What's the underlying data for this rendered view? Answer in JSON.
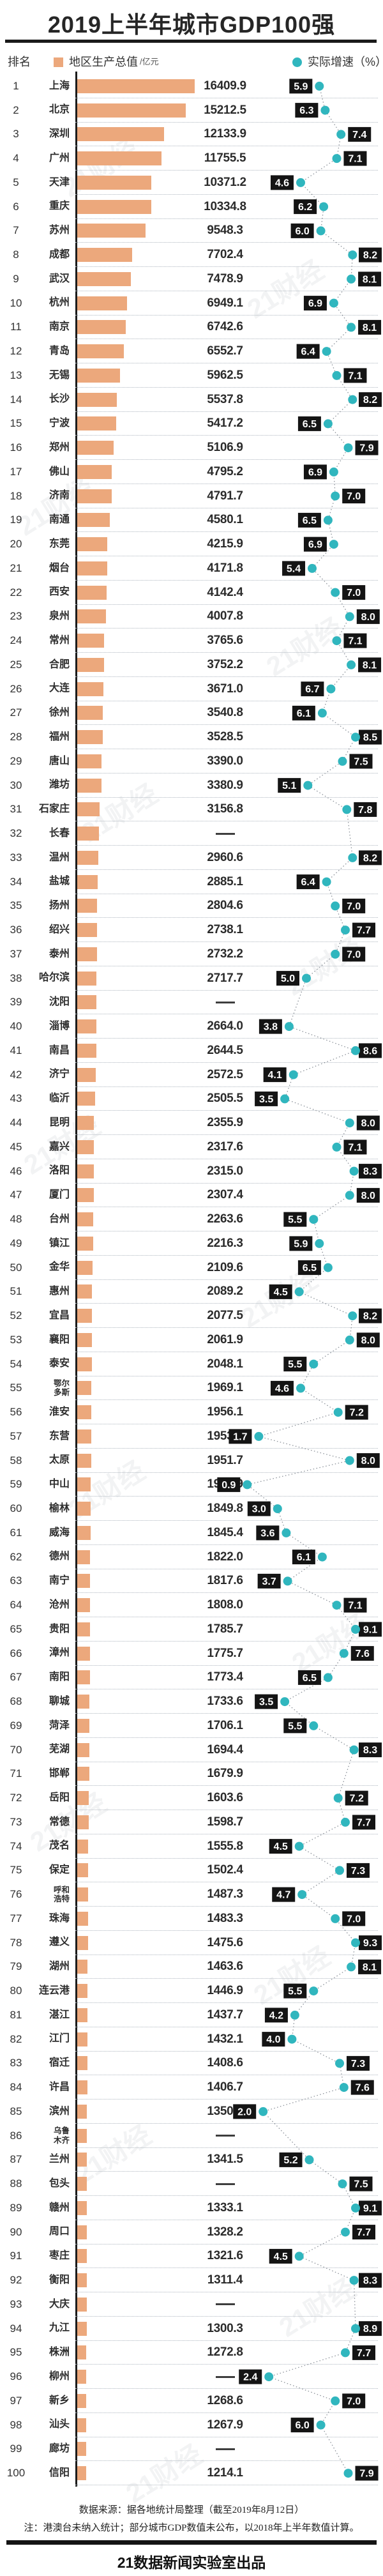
{
  "title": "2019上半年城市GDP100强",
  "legend": {
    "rank_label": "排名",
    "gdp_label": "地区生产总值",
    "gdp_unit": "/亿元",
    "growth_label": "实际增速（%）"
  },
  "colors": {
    "bar": "#ECA87C",
    "dot": "#30B6BE",
    "badge_bg": "#141414",
    "badge_text": "#FFFFFF",
    "line": "#8A9098",
    "rule": "#1A1A1A"
  },
  "watermark": "21财经",
  "footer": {
    "source": "数据来源：据各地统计局整理（截至2019年8月12日）",
    "note": "注：港澳台未纳入统计；部分城市GDP数值未公布，以2018年上半年数值计算。",
    "brand": "21数据新闻实验室出品"
  },
  "chart_data": {
    "type": "bar",
    "title": "2019上半年城市GDP100强",
    "xlabel": "地区生产总值（亿元）",
    "ylabel": "排名",
    "series_names": [
      "地区生产总值（亿元）",
      "实际增速（%）"
    ],
    "legend_position": "top",
    "grid": "dotted-row-separators",
    "note": "gdp为null表示原图显示“——”（数值未公布，条长按2018年上半年数值bar_est绘制）；growth为null表示未显示增速点",
    "rows": [
      {
        "rank": 1,
        "city": "上海",
        "gdp": "16409.9",
        "bar_est": 16409.9,
        "growth": "5.9"
      },
      {
        "rank": 2,
        "city": "北京",
        "gdp": "15212.5",
        "bar_est": 15212.5,
        "growth": "6.3"
      },
      {
        "rank": 3,
        "city": "深圳",
        "gdp": "12133.9",
        "bar_est": 12133.9,
        "growth": "7.4"
      },
      {
        "rank": 4,
        "city": "广州",
        "gdp": "11755.5",
        "bar_est": 11755.5,
        "growth": "7.1"
      },
      {
        "rank": 5,
        "city": "天津",
        "gdp": "10371.2",
        "bar_est": 10371.2,
        "growth": "4.6"
      },
      {
        "rank": 6,
        "city": "重庆",
        "gdp": "10334.8",
        "bar_est": 10334.8,
        "growth": "6.2"
      },
      {
        "rank": 7,
        "city": "苏州",
        "gdp": "9548.3",
        "bar_est": 9548.3,
        "growth": "6.0"
      },
      {
        "rank": 8,
        "city": "成都",
        "gdp": "7702.4",
        "bar_est": 7702.4,
        "growth": "8.2"
      },
      {
        "rank": 9,
        "city": "武汉",
        "gdp": "7478.9",
        "bar_est": 7478.9,
        "growth": "8.1"
      },
      {
        "rank": 10,
        "city": "杭州",
        "gdp": "6949.1",
        "bar_est": 6949.1,
        "growth": "6.9"
      },
      {
        "rank": 11,
        "city": "南京",
        "gdp": "6742.6",
        "bar_est": 6742.6,
        "growth": "8.1"
      },
      {
        "rank": 12,
        "city": "青岛",
        "gdp": "6552.7",
        "bar_est": 6552.7,
        "growth": "6.4"
      },
      {
        "rank": 13,
        "city": "无锡",
        "gdp": "5962.5",
        "bar_est": 5962.5,
        "growth": "7.1"
      },
      {
        "rank": 14,
        "city": "长沙",
        "gdp": "5537.8",
        "bar_est": 5537.8,
        "growth": "8.2"
      },
      {
        "rank": 15,
        "city": "宁波",
        "gdp": "5417.2",
        "bar_est": 5417.2,
        "growth": "6.5"
      },
      {
        "rank": 16,
        "city": "郑州",
        "gdp": "5106.9",
        "bar_est": 5106.9,
        "growth": "7.9"
      },
      {
        "rank": 17,
        "city": "佛山",
        "gdp": "4795.2",
        "bar_est": 4795.2,
        "growth": "6.9"
      },
      {
        "rank": 18,
        "city": "济南",
        "gdp": "4791.7",
        "bar_est": 4791.7,
        "growth": "7.0"
      },
      {
        "rank": 19,
        "city": "南通",
        "gdp": "4580.1",
        "bar_est": 4580.1,
        "growth": "6.5"
      },
      {
        "rank": 20,
        "city": "东莞",
        "gdp": "4215.9",
        "bar_est": 4215.9,
        "growth": "6.9"
      },
      {
        "rank": 21,
        "city": "烟台",
        "gdp": "4171.8",
        "bar_est": 4171.8,
        "growth": "5.4"
      },
      {
        "rank": 22,
        "city": "西安",
        "gdp": "4142.4",
        "bar_est": 4142.4,
        "growth": "7.0"
      },
      {
        "rank": 23,
        "city": "泉州",
        "gdp": "4007.8",
        "bar_est": 4007.8,
        "growth": "8.0"
      },
      {
        "rank": 24,
        "city": "常州",
        "gdp": "3765.6",
        "bar_est": 3765.6,
        "growth": "7.1"
      },
      {
        "rank": 25,
        "city": "合肥",
        "gdp": "3752.2",
        "bar_est": 3752.2,
        "growth": "8.1"
      },
      {
        "rank": 26,
        "city": "大连",
        "gdp": "3671.0",
        "bar_est": 3671.0,
        "growth": "6.7"
      },
      {
        "rank": 27,
        "city": "徐州",
        "gdp": "3540.8",
        "bar_est": 3540.8,
        "growth": "6.1"
      },
      {
        "rank": 28,
        "city": "福州",
        "gdp": "3528.5",
        "bar_est": 3528.5,
        "growth": "8.5"
      },
      {
        "rank": 29,
        "city": "唐山",
        "gdp": "3390.0",
        "bar_est": 3390.0,
        "growth": "7.5"
      },
      {
        "rank": 30,
        "city": "潍坊",
        "gdp": "3380.9",
        "bar_est": 3380.9,
        "growth": "5.1"
      },
      {
        "rank": 31,
        "city": "石家庄",
        "gdp": "3156.8",
        "bar_est": 3156.8,
        "growth": "7.8"
      },
      {
        "rank": 32,
        "city": "长春",
        "gdp": null,
        "bar_est": 3060,
        "growth": null
      },
      {
        "rank": 33,
        "city": "温州",
        "gdp": "2960.6",
        "bar_est": 2960.6,
        "growth": "8.2"
      },
      {
        "rank": 34,
        "city": "盐城",
        "gdp": "2885.1",
        "bar_est": 2885.1,
        "growth": "6.4"
      },
      {
        "rank": 35,
        "city": "扬州",
        "gdp": "2804.6",
        "bar_est": 2804.6,
        "growth": "7.0"
      },
      {
        "rank": 36,
        "city": "绍兴",
        "gdp": "2738.1",
        "bar_est": 2738.1,
        "growth": "7.7"
      },
      {
        "rank": 37,
        "city": "泰州",
        "gdp": "2732.2",
        "bar_est": 2732.2,
        "growth": "7.0"
      },
      {
        "rank": 38,
        "city": "哈尔滨",
        "gdp": "2717.7",
        "bar_est": 2717.7,
        "growth": "5.0"
      },
      {
        "rank": 39,
        "city": "沈阳",
        "gdp": null,
        "bar_est": 2690,
        "growth": null
      },
      {
        "rank": 40,
        "city": "淄博",
        "gdp": "2664.0",
        "bar_est": 2664.0,
        "growth": "3.8"
      },
      {
        "rank": 41,
        "city": "南昌",
        "gdp": "2644.5",
        "bar_est": 2644.5,
        "growth": "8.6"
      },
      {
        "rank": 42,
        "city": "济宁",
        "gdp": "2572.5",
        "bar_est": 2572.5,
        "growth": "4.1"
      },
      {
        "rank": 43,
        "city": "临沂",
        "gdp": "2505.5",
        "bar_est": 2505.5,
        "growth": "3.5"
      },
      {
        "rank": 44,
        "city": "昆明",
        "gdp": "2355.9",
        "bar_est": 2355.9,
        "growth": "8.0"
      },
      {
        "rank": 45,
        "city": "嘉兴",
        "gdp": "2317.6",
        "bar_est": 2317.6,
        "growth": "7.1"
      },
      {
        "rank": 46,
        "city": "洛阳",
        "gdp": "2315.0",
        "bar_est": 2315.0,
        "growth": "8.3"
      },
      {
        "rank": 47,
        "city": "厦门",
        "gdp": "2307.4",
        "bar_est": 2307.4,
        "growth": "8.0"
      },
      {
        "rank": 48,
        "city": "台州",
        "gdp": "2263.6",
        "bar_est": 2263.6,
        "growth": "5.5"
      },
      {
        "rank": 49,
        "city": "镇江",
        "gdp": "2216.3",
        "bar_est": 2216.3,
        "growth": "5.9"
      },
      {
        "rank": 50,
        "city": "金华",
        "gdp": "2109.6",
        "bar_est": 2109.6,
        "growth": "6.5"
      },
      {
        "rank": 51,
        "city": "惠州",
        "gdp": "2089.2",
        "bar_est": 2089.2,
        "growth": "4.5"
      },
      {
        "rank": 52,
        "city": "宜昌",
        "gdp": "2077.5",
        "bar_est": 2077.5,
        "growth": "8.2"
      },
      {
        "rank": 53,
        "city": "襄阳",
        "gdp": "2061.9",
        "bar_est": 2061.9,
        "growth": "8.0"
      },
      {
        "rank": 54,
        "city": "泰安",
        "gdp": "2048.1",
        "bar_est": 2048.1,
        "growth": "5.5"
      },
      {
        "rank": 55,
        "city": "鄂尔多斯",
        "wrap": [
          "鄂尔",
          "多斯"
        ],
        "gdp": "1969.1",
        "bar_est": 1969.1,
        "growth": "4.6"
      },
      {
        "rank": 56,
        "city": "淮安",
        "gdp": "1956.1",
        "bar_est": 1956.1,
        "growth": "7.2"
      },
      {
        "rank": 57,
        "city": "东营",
        "gdp": "1953.1",
        "bar_est": 1953.1,
        "growth": "1.7"
      },
      {
        "rank": 58,
        "city": "太原",
        "gdp": "1951.7",
        "bar_est": 1951.7,
        "growth": "8.0"
      },
      {
        "rank": 59,
        "city": "中山",
        "gdp": "1913.9",
        "bar_est": 1913.9,
        "growth": "0.9"
      },
      {
        "rank": 60,
        "city": "榆林",
        "gdp": "1849.8",
        "bar_est": 1849.8,
        "growth": "3.0"
      },
      {
        "rank": 61,
        "city": "威海",
        "gdp": "1845.4",
        "bar_est": 1845.4,
        "growth": "3.6"
      },
      {
        "rank": 62,
        "city": "德州",
        "gdp": "1822.0",
        "bar_est": 1822.0,
        "growth": "6.1"
      },
      {
        "rank": 63,
        "city": "南宁",
        "gdp": "1817.6",
        "bar_est": 1817.6,
        "growth": "3.7"
      },
      {
        "rank": 64,
        "city": "沧州",
        "gdp": "1808.0",
        "bar_est": 1808.0,
        "growth": "7.1"
      },
      {
        "rank": 65,
        "city": "贵阳",
        "gdp": "1785.7",
        "bar_est": 1785.7,
        "growth": "9.1"
      },
      {
        "rank": 66,
        "city": "漳州",
        "gdp": "1775.7",
        "bar_est": 1775.7,
        "growth": "7.6"
      },
      {
        "rank": 67,
        "city": "南阳",
        "gdp": "1773.4",
        "bar_est": 1773.4,
        "growth": "6.5"
      },
      {
        "rank": 68,
        "city": "聊城",
        "gdp": "1733.6",
        "bar_est": 1733.6,
        "growth": "3.5"
      },
      {
        "rank": 69,
        "city": "菏泽",
        "gdp": "1706.1",
        "bar_est": 1706.1,
        "growth": "5.5"
      },
      {
        "rank": 70,
        "city": "芜湖",
        "gdp": "1694.4",
        "bar_est": 1694.4,
        "growth": "8.3"
      },
      {
        "rank": 71,
        "city": "邯郸",
        "gdp": "1679.9",
        "bar_est": 1679.9,
        "growth": null
      },
      {
        "rank": 72,
        "city": "岳阳",
        "gdp": "1603.6",
        "bar_est": 1603.6,
        "growth": "7.2"
      },
      {
        "rank": 73,
        "city": "常德",
        "gdp": "1598.7",
        "bar_est": 1598.7,
        "growth": "7.7"
      },
      {
        "rank": 74,
        "city": "茂名",
        "gdp": "1555.8",
        "bar_est": 1555.8,
        "growth": "4.5"
      },
      {
        "rank": 75,
        "city": "保定",
        "gdp": "1502.4",
        "bar_est": 1502.4,
        "growth": "7.3"
      },
      {
        "rank": 76,
        "city": "呼和浩特",
        "wrap": [
          "呼和",
          "浩特"
        ],
        "gdp": "1487.3",
        "bar_est": 1487.3,
        "growth": "4.7"
      },
      {
        "rank": 77,
        "city": "珠海",
        "gdp": "1483.3",
        "bar_est": 1483.3,
        "growth": "7.0"
      },
      {
        "rank": 78,
        "city": "遵义",
        "gdp": "1475.6",
        "bar_est": 1475.6,
        "growth": "9.3"
      },
      {
        "rank": 79,
        "city": "湖州",
        "gdp": "1463.6",
        "bar_est": 1463.6,
        "growth": "8.1"
      },
      {
        "rank": 80,
        "city": "连云港",
        "gdp": "1446.9",
        "bar_est": 1446.9,
        "growth": "5.5"
      },
      {
        "rank": 81,
        "city": "湛江",
        "gdp": "1437.7",
        "bar_est": 1437.7,
        "growth": "4.2"
      },
      {
        "rank": 82,
        "city": "江门",
        "gdp": "1432.1",
        "bar_est": 1432.1,
        "growth": "4.0"
      },
      {
        "rank": 83,
        "city": "宿迁",
        "gdp": "1408.6",
        "bar_est": 1408.6,
        "growth": "7.3"
      },
      {
        "rank": 84,
        "city": "许昌",
        "gdp": "1406.7",
        "bar_est": 1406.7,
        "growth": "7.6"
      },
      {
        "rank": 85,
        "city": "滨州",
        "gdp": "1350.8",
        "bar_est": 1350.8,
        "growth": "2.0"
      },
      {
        "rank": 86,
        "city": "乌鲁木齐",
        "wrap": [
          "乌鲁",
          "木齐"
        ],
        "gdp": null,
        "bar_est": 1346,
        "growth": null
      },
      {
        "rank": 87,
        "city": "兰州",
        "gdp": "1341.5",
        "bar_est": 1341.5,
        "growth": "5.2"
      },
      {
        "rank": 88,
        "city": "包头",
        "gdp": null,
        "bar_est": 1337,
        "growth": "7.5"
      },
      {
        "rank": 89,
        "city": "赣州",
        "gdp": "1333.1",
        "bar_est": 1333.1,
        "growth": "9.1"
      },
      {
        "rank": 90,
        "city": "周口",
        "gdp": "1328.2",
        "bar_est": 1328.2,
        "growth": "7.7"
      },
      {
        "rank": 91,
        "city": "枣庄",
        "gdp": "1321.6",
        "bar_est": 1321.6,
        "growth": "4.5"
      },
      {
        "rank": 92,
        "city": "衡阳",
        "gdp": "1311.4",
        "bar_est": 1311.4,
        "growth": "8.3"
      },
      {
        "rank": 93,
        "city": "大庆",
        "gdp": null,
        "bar_est": 1306,
        "growth": null
      },
      {
        "rank": 94,
        "city": "九江",
        "gdp": "1300.3",
        "bar_est": 1300.3,
        "growth": "8.9"
      },
      {
        "rank": 95,
        "city": "株洲",
        "gdp": "1272.8",
        "bar_est": 1272.8,
        "growth": "7.7"
      },
      {
        "rank": 96,
        "city": "柳州",
        "gdp": null,
        "bar_est": 1271,
        "growth": "2.4"
      },
      {
        "rank": 97,
        "city": "新乡",
        "gdp": "1268.6",
        "bar_est": 1268.6,
        "growth": "7.0"
      },
      {
        "rank": 98,
        "city": "汕头",
        "gdp": "1267.9",
        "bar_est": 1267.9,
        "growth": "6.0"
      },
      {
        "rank": 99,
        "city": "廊坊",
        "gdp": null,
        "bar_est": 1240,
        "growth": null
      },
      {
        "rank": 100,
        "city": "信阳",
        "gdp": "1214.1",
        "bar_est": 1214.1,
        "growth": "7.9"
      }
    ]
  }
}
